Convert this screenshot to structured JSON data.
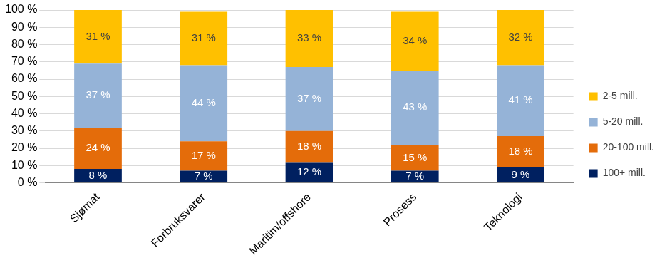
{
  "chart_data": {
    "type": "bar",
    "stacked": true,
    "grid": true,
    "legend": "right",
    "data_labels": true,
    "categories": [
      "Sjømat",
      "Forbruksvarer",
      "Maritim/offshore",
      "Prosess",
      "Teknologi"
    ],
    "ylim": [
      0,
      100
    ],
    "yticks": [
      {
        "value": 0,
        "label": "0 %"
      },
      {
        "value": 10,
        "label": "10 %"
      },
      {
        "value": 20,
        "label": "20 %"
      },
      {
        "value": 30,
        "label": "30 %"
      },
      {
        "value": 40,
        "label": "40 %"
      },
      {
        "value": 50,
        "label": "50 %"
      },
      {
        "value": 60,
        "label": "60 %"
      },
      {
        "value": 70,
        "label": "70 %"
      },
      {
        "value": 80,
        "label": "80 %"
      },
      {
        "value": 90,
        "label": "90 %"
      },
      {
        "value": 100,
        "label": "100 %"
      }
    ],
    "series": [
      {
        "name": "100+ mill.",
        "color": "#002060",
        "values": [
          8,
          7,
          12,
          7,
          9
        ],
        "value_labels": [
          "8 %",
          "7 %",
          "12 %",
          "7 %",
          "9 %"
        ]
      },
      {
        "name": "20-100 mill.",
        "color": "#e46c0a",
        "values": [
          24,
          17,
          18,
          15,
          18
        ],
        "value_labels": [
          "24 %",
          "17 %",
          "18 %",
          "15 %",
          "18 %"
        ]
      },
      {
        "name": "5-20 mill.",
        "color": "#95b3d7",
        "values": [
          37,
          44,
          37,
          43,
          41
        ],
        "value_labels": [
          "37 %",
          "44 %",
          "37 %",
          "43 %",
          "41 %"
        ]
      },
      {
        "name": "2-5 mill.",
        "color": "#ffc000",
        "values": [
          31,
          31,
          33,
          34,
          32
        ],
        "value_labels": [
          "31 %",
          "31 %",
          "33 %",
          "34 %",
          "32 %"
        ]
      }
    ]
  }
}
